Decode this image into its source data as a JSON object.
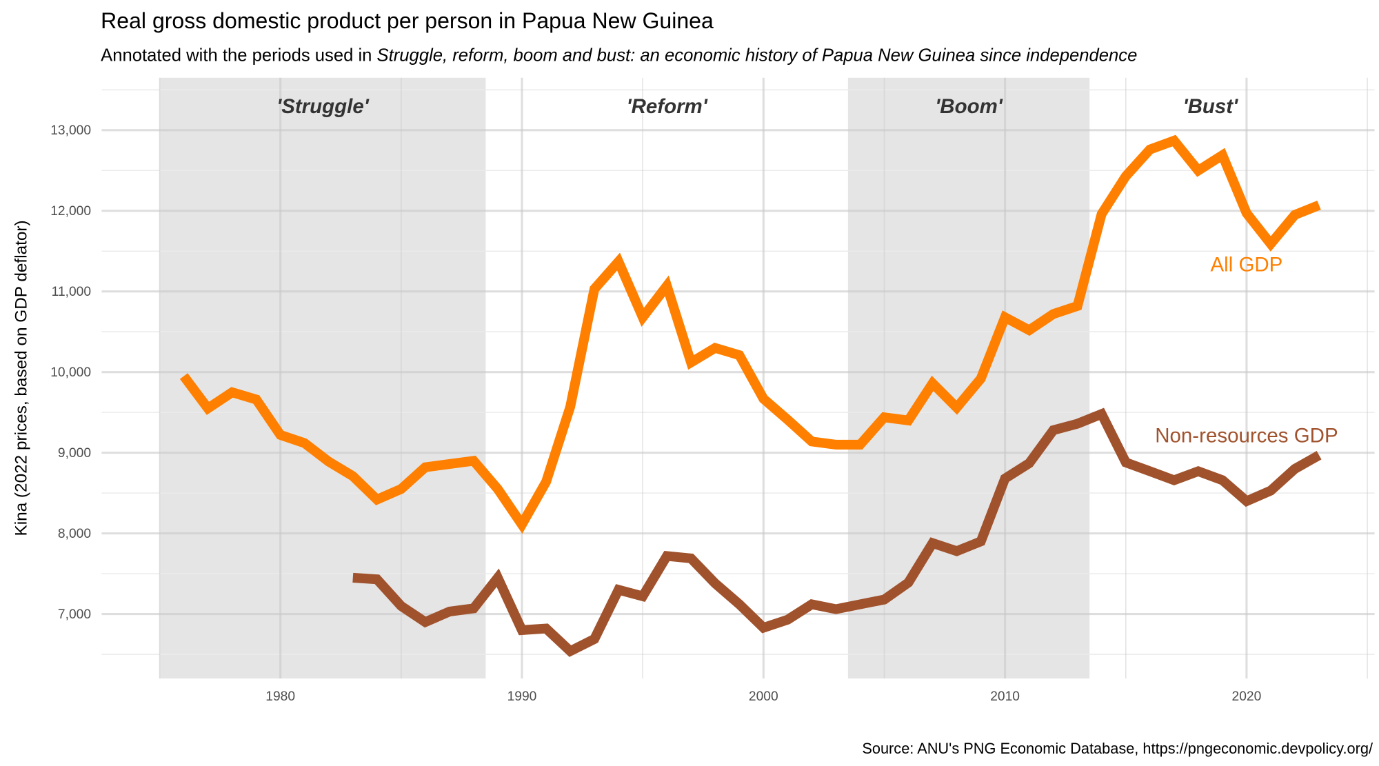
{
  "chart_data": {
    "type": "line",
    "title": "Real gross domestic product per person in Papua New Guinea",
    "subtitle_prefix": "Annotated with the periods used in ",
    "subtitle_italic": "Struggle, reform, boom and bust: an economic history of Papua New Guinea since independence",
    "ylabel": "Kina (2022 prices, based on GDP deflator)",
    "xlabel": "",
    "caption": "Source: ANU's PNG Economic Database, https://pngeconomic.devpolicy.org/",
    "xlim": [
      1972.6,
      2025.3
    ],
    "ylim": [
      6200,
      13650
    ],
    "xticks": [
      1980,
      1990,
      2000,
      2010,
      2020
    ],
    "yticks": [
      7000,
      8000,
      9000,
      10000,
      11000,
      12000,
      13000
    ],
    "ytick_labels": [
      "7,000",
      "8,000",
      "9,000",
      "10,000",
      "11,000",
      "12,000",
      "13,000"
    ],
    "xtick_labels": [
      "1980",
      "1990",
      "2000",
      "2010",
      "2020"
    ],
    "grid": true,
    "periods": [
      {
        "label": "'Struggle'",
        "start": 1975,
        "end": 1988.5,
        "shaded": true
      },
      {
        "label": "'Reform'",
        "start": 1988.5,
        "end": 2003.5,
        "shaded": false
      },
      {
        "label": "'Boom'",
        "start": 2003.5,
        "end": 2013.5,
        "shaded": true
      },
      {
        "label": "'Bust'",
        "start": 2013.5,
        "end": 2023.5,
        "shaded": false
      }
    ],
    "series": [
      {
        "name": "All GDP",
        "color": "#FF7F00",
        "label_at": [
          2020,
          11250
        ],
        "x": [
          1976,
          1977,
          1978,
          1979,
          1980,
          1981,
          1982,
          1983,
          1984,
          1985,
          1986,
          1987,
          1988,
          1989,
          1990,
          1991,
          1992,
          1993,
          1994,
          1995,
          1996,
          1997,
          1998,
          1999,
          2000,
          2001,
          2002,
          2003,
          2004,
          2005,
          2006,
          2007,
          2008,
          2009,
          2010,
          2011,
          2012,
          2013,
          2014,
          2015,
          2016,
          2017,
          2018,
          2019,
          2020,
          2021,
          2022,
          2023
        ],
        "values": [
          9950,
          9550,
          9750,
          9660,
          9220,
          9120,
          8890,
          8710,
          8420,
          8550,
          8820,
          8860,
          8900,
          8550,
          8110,
          8640,
          9570,
          11030,
          11370,
          10680,
          11070,
          10120,
          10300,
          10210,
          9670,
          9410,
          9140,
          9100,
          9100,
          9440,
          9400,
          9860,
          9560,
          9920,
          10680,
          10520,
          10720,
          10820,
          11960,
          12430,
          12760,
          12870,
          12500,
          12690,
          11970,
          11590,
          11950,
          12070
        ]
      },
      {
        "name": "Non-resources GDP",
        "color": "#A0522D",
        "label_at": [
          2020,
          9130
        ],
        "x": [
          1983,
          1984,
          1985,
          1986,
          1987,
          1988,
          1989,
          1990,
          1991,
          1992,
          1993,
          1994,
          1995,
          1996,
          1997,
          1998,
          1999,
          2000,
          2001,
          2002,
          2003,
          2004,
          2005,
          2006,
          2007,
          2008,
          2009,
          2010,
          2011,
          2012,
          2013,
          2014,
          2015,
          2016,
          2017,
          2018,
          2019,
          2020,
          2021,
          2022,
          2023
        ],
        "values": [
          7450,
          7430,
          7100,
          6900,
          7030,
          7070,
          7450,
          6800,
          6820,
          6540,
          6690,
          7300,
          7220,
          7720,
          7690,
          7380,
          7120,
          6830,
          6930,
          7120,
          7060,
          7120,
          7180,
          7390,
          7880,
          7780,
          7900,
          8680,
          8870,
          9280,
          9360,
          9480,
          8880,
          8770,
          8660,
          8770,
          8660,
          8400,
          8530,
          8800,
          8970
        ]
      }
    ]
  }
}
